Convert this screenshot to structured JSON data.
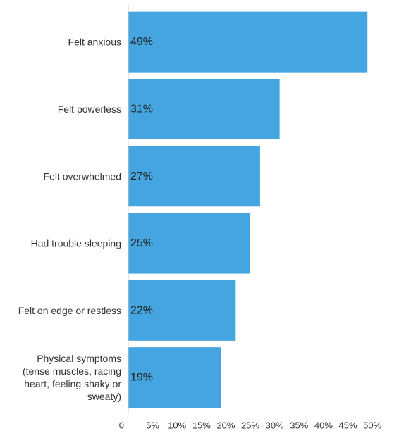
{
  "chart_data": {
    "type": "bar",
    "orientation": "horizontal",
    "title": "",
    "xlabel": "",
    "ylabel": "",
    "categories": [
      [
        "Felt anxious"
      ],
      [
        "Felt powerless"
      ],
      [
        "Felt overwhelmed"
      ],
      [
        "Had trouble sleeping"
      ],
      [
        "Felt on edge or restless"
      ],
      [
        "Physical symptoms",
        "(tense muscles, racing",
        "heart, feeling shaky or",
        "sweaty)"
      ]
    ],
    "values": [
      49,
      31,
      27,
      25,
      22,
      19
    ],
    "value_labels": [
      "49%",
      "31%",
      "27%",
      "25%",
      "22%",
      "19%"
    ],
    "xlim": [
      0,
      52
    ],
    "xticks": [
      0,
      5,
      10,
      15,
      20,
      25,
      30,
      35,
      40,
      45,
      50
    ],
    "xtick_labels": [
      "0",
      "5%",
      "10%",
      "15%",
      "20%",
      "25%",
      "30%",
      "35%",
      "40%",
      "45%",
      "50%"
    ],
    "grid": false,
    "legend": "none",
    "colors": {
      "bar": "#45a5e0",
      "axis": "#cccccc"
    }
  }
}
